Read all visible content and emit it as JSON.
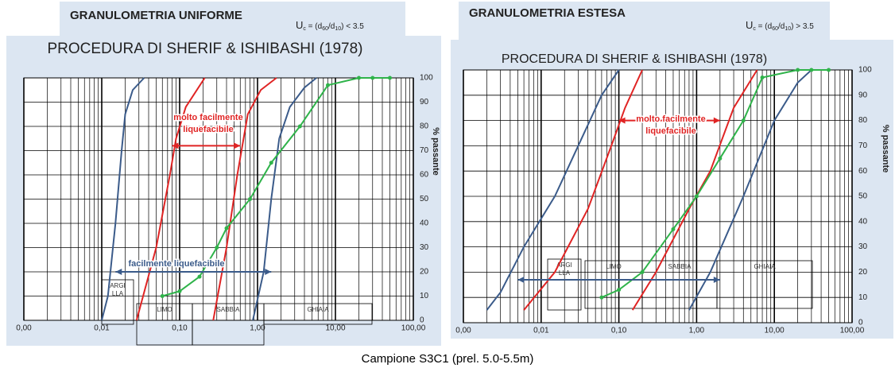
{
  "caption": "Campione S3C1 (prel. 5.0-5.5m)",
  "chart_data": [
    {
      "type": "line",
      "header": "GRANULOMETRIA UNIFORME",
      "formula": [
        "U",
        "c",
        " = (d",
        "60",
        "/d",
        "10",
        ") < 3.5"
      ],
      "title": "PROCEDURA DI SHERIF & ISHIBASHI (1978)",
      "y_label": "% passante",
      "xlog": true,
      "xlim": [
        0.001,
        100
      ],
      "xticks": [
        {
          "value": 0.001,
          "label": "0,00"
        },
        {
          "value": 0.01,
          "label": "0,01"
        },
        {
          "value": 0.1,
          "label": "0,10"
        },
        {
          "value": 1,
          "label": "1,00"
        },
        {
          "value": 10,
          "label": "10,00"
        },
        {
          "value": 100,
          "label": "100,00"
        }
      ],
      "ylim": [
        0,
        100
      ],
      "yticks": [
        0,
        10,
        20,
        30,
        40,
        50,
        60,
        70,
        80,
        90,
        100
      ],
      "grid": true,
      "zones": [
        [
          "ARGI",
          "LLA"
        ],
        [
          "LIMO"
        ],
        [
          "SABBIA"
        ],
        [
          "GHIAIA"
        ]
      ],
      "annotations": [
        "molto facilmente",
        "liquefacibile",
        "facilmente liquefacibile"
      ],
      "series": [
        {
          "color": "#3b5b8a",
          "x": [
            0.01,
            0.012,
            0.015,
            0.018,
            0.02,
            0.025,
            0.035
          ],
          "values": [
            0,
            10,
            40,
            70,
            85,
            95,
            100
          ]
        },
        {
          "color": "#3b5b8a",
          "x": [
            0.87,
            1.2,
            1.5,
            1.9,
            2.6,
            4,
            5.7
          ],
          "values": [
            0,
            20,
            50,
            75,
            88,
            96,
            100
          ]
        },
        {
          "color": "#e02424",
          "x": [
            0.028,
            0.05,
            0.075,
            0.09,
            0.12,
            0.21
          ],
          "values": [
            0,
            30,
            60,
            75,
            88,
            100
          ]
        },
        {
          "color": "#e02424",
          "x": [
            0.27,
            0.4,
            0.55,
            0.75,
            1.1,
            1.75
          ],
          "values": [
            0,
            30,
            60,
            85,
            95,
            100
          ]
        },
        {
          "color": "#2fb34a",
          "markers": true,
          "x": [
            0.06,
            0.1,
            0.18,
            0.3,
            0.4,
            0.8,
            1.5,
            3.5,
            8,
            20,
            30,
            50
          ],
          "values": [
            10,
            12,
            18,
            30,
            38,
            50,
            65,
            80,
            97,
            100,
            100,
            100
          ]
        }
      ]
    },
    {
      "type": "line",
      "header": "GRANULOMETRIA ESTESA",
      "formula": [
        "U",
        "c",
        " = (d",
        "60",
        "/d",
        "10",
        ") > 3.5"
      ],
      "title": "PROCEDURA DI SHERIF & ISHIBASHI (1978)",
      "y_label": "% passante",
      "xlog": true,
      "xlim": [
        0.001,
        100
      ],
      "xticks": [
        {
          "value": 0.001,
          "label": "0,00"
        },
        {
          "value": 0.01,
          "label": "0,01"
        },
        {
          "value": 0.1,
          "label": "0,10"
        },
        {
          "value": 1,
          "label": "1,00"
        },
        {
          "value": 10,
          "label": "10,00"
        },
        {
          "value": 100,
          "label": "100,00"
        }
      ],
      "ylim": [
        0,
        100
      ],
      "yticks": [
        0,
        10,
        20,
        30,
        40,
        50,
        60,
        70,
        80,
        90,
        100
      ],
      "grid": true,
      "zones": [
        [
          "ARGI",
          "LLA"
        ],
        [
          "LIMO"
        ],
        [
          "SABBIA"
        ],
        [
          "GHIAIA"
        ]
      ],
      "annotations": [
        "molto facilmente",
        "liquefacibile"
      ],
      "series": [
        {
          "color": "#3b5b8a",
          "x": [
            0.002,
            0.003,
            0.006,
            0.015,
            0.03,
            0.06,
            0.1
          ],
          "values": [
            5,
            12,
            30,
            50,
            70,
            90,
            100
          ]
        },
        {
          "color": "#e02424",
          "x": [
            0.006,
            0.015,
            0.04,
            0.08,
            0.12,
            0.2
          ],
          "values": [
            5,
            20,
            45,
            70,
            85,
            100
          ]
        },
        {
          "color": "#e02424",
          "x": [
            0.15,
            0.3,
            0.8,
            1.5,
            3,
            6
          ],
          "values": [
            5,
            20,
            45,
            60,
            85,
            100
          ]
        },
        {
          "color": "#3b5b8a",
          "x": [
            0.8,
            1.5,
            4,
            10,
            20,
            30
          ],
          "values": [
            5,
            20,
            50,
            80,
            95,
            100
          ]
        },
        {
          "color": "#2fb34a",
          "markers": true,
          "x": [
            0.06,
            0.1,
            0.2,
            0.5,
            1,
            2,
            4,
            7,
            20,
            30,
            50
          ],
          "values": [
            10,
            13,
            20,
            37,
            50,
            65,
            80,
            97,
            100,
            100,
            100
          ]
        }
      ]
    }
  ]
}
